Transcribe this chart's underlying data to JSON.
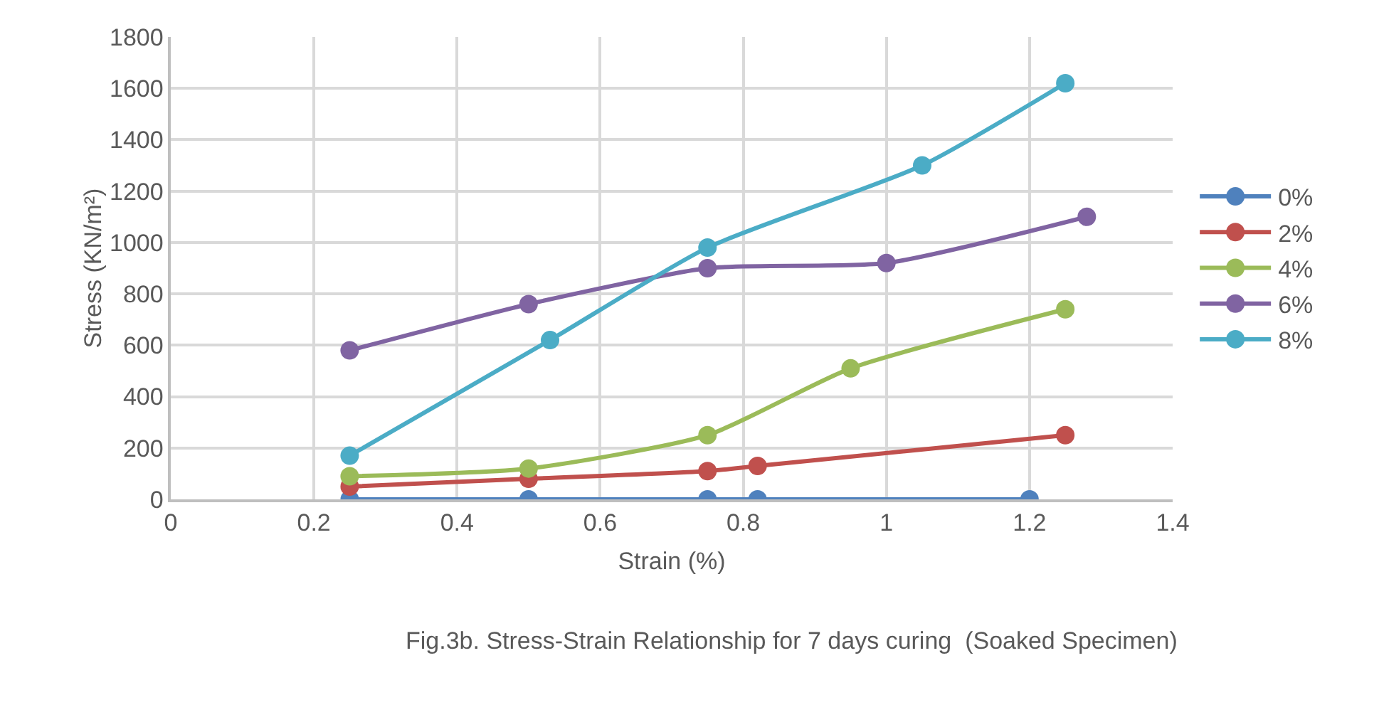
{
  "chart_data": {
    "type": "line",
    "xlabel": "Strain (%)",
    "ylabel": "Stress (KN/m²)",
    "annotations": [
      "Fig.3b. Stress-Strain Relationship for 7 days curing  (Soaked Specimen)"
    ],
    "xlim": [
      0,
      1.4
    ],
    "xticks": [
      0,
      0.2,
      0.4,
      0.6,
      0.8,
      1,
      1.2,
      1.4
    ],
    "ylim": [
      0,
      1800
    ],
    "yticks": [
      0,
      200,
      400,
      600,
      800,
      1000,
      1200,
      1400,
      1600,
      1800
    ],
    "grid": true,
    "legend": "right",
    "marker": "circle",
    "line_style": "solid",
    "series": [
      {
        "name": "0%",
        "color": "#4f81bd",
        "x": [
          0.25,
          0.5,
          0.75,
          0.82,
          1.2
        ],
        "values": [
          0,
          0,
          0,
          0,
          0
        ]
      },
      {
        "name": "2%",
        "color": "#c0504d",
        "x": [
          0.25,
          0.5,
          0.75,
          0.82,
          1.25
        ],
        "values": [
          50,
          80,
          110,
          130,
          250
        ]
      },
      {
        "name": "4%",
        "color": "#9bbb59",
        "x": [
          0.25,
          0.5,
          0.75,
          0.95,
          1.25
        ],
        "values": [
          90,
          120,
          250,
          510,
          740
        ]
      },
      {
        "name": "6%",
        "color": "#8064a2",
        "x": [
          0.25,
          0.5,
          0.75,
          1.0,
          1.28
        ],
        "values": [
          580,
          760,
          900,
          920,
          1100
        ]
      },
      {
        "name": "8%",
        "color": "#4bacc6",
        "x": [
          0.25,
          0.53,
          0.75,
          1.05,
          1.25
        ],
        "values": [
          170,
          620,
          980,
          1300,
          1620
        ]
      }
    ]
  }
}
